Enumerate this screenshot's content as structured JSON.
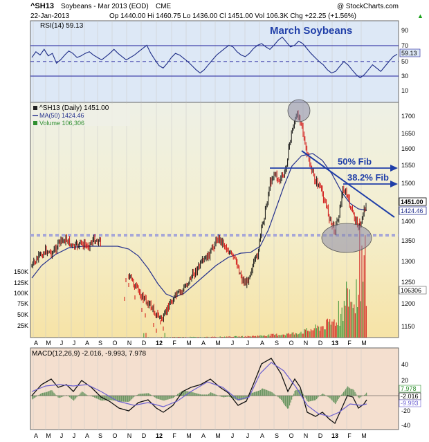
{
  "header": {
    "symbol": "^SH13",
    "name": "Soybeans - Mar 2013 (EOD)",
    "exchange": "CME",
    "date": "22-Jan-2013",
    "quote": "Op 1440.00  Hi 1460.75  Lo 1436.00  Cl 1451.00  Vol 106.3K  Chg +22.25 (+1.56%)",
    "copyright": "@ StockCharts.com",
    "quote_arrow": "▲"
  },
  "months": [
    "A",
    "M",
    "J",
    "J",
    "A",
    "S",
    "O",
    "N",
    "D",
    "12",
    "F",
    "M",
    "A",
    "M",
    "J",
    "J",
    "A",
    "S",
    "O",
    "N",
    "D",
    "13",
    "F",
    "M"
  ],
  "rsi": {
    "label": "RSI(14) 59.13",
    "ticks": [
      "90",
      "70",
      "50",
      "30",
      "10"
    ],
    "value_tag": "59.13",
    "panel_title": "March Soybeans",
    "values": [
      55,
      62,
      58,
      65,
      57,
      60,
      48,
      52,
      58,
      63,
      60,
      55,
      57,
      60,
      62,
      58,
      55,
      52,
      56,
      60,
      65,
      60,
      56,
      52,
      55,
      58,
      62,
      66,
      70,
      60,
      52,
      45,
      42,
      48,
      55,
      60,
      58,
      54,
      50,
      45,
      40,
      36,
      40,
      46,
      52,
      58,
      62,
      66,
      70,
      68,
      62,
      58,
      56,
      60,
      66,
      70,
      72,
      68,
      65,
      70,
      76,
      80,
      74,
      68,
      70,
      75,
      72,
      66,
      60,
      55,
      50,
      46,
      40,
      36,
      38,
      44,
      50,
      46,
      40,
      34,
      30,
      34,
      40,
      46,
      42,
      38,
      44,
      50,
      56,
      59
    ]
  },
  "price_panel": {
    "legend_price": "^SH13 (Daily) 1451.00",
    "legend_ma": "MA(50) 1424.46",
    "legend_volume": "Volume 106,306",
    "price_ticks": [
      "1700",
      "1650",
      "1600",
      "1550",
      "1500",
      "1450",
      "1400",
      "1350",
      "1300",
      "1250",
      "1200",
      "1150"
    ],
    "volume_ticks": [
      "150K",
      "125K",
      "100K",
      "75K",
      "50K",
      "25K"
    ],
    "tag_close": "1451.00",
    "tag_ma": "1424.46",
    "tag_volume": "106306",
    "annotations": {
      "fib50": "50% Fib",
      "fib382": "38.2% Fib"
    }
  },
  "macd": {
    "label": "MACD(12,26,9) -2.016, -9.993, 7.978",
    "ticks": [
      "40",
      "20",
      "0",
      "-20",
      "-40"
    ],
    "tags": [
      "7.978",
      "-2.016",
      "-9.993"
    ]
  },
  "chart_data": {
    "type": "line",
    "title": "March Soybeans",
    "x": [
      "Apr-11",
      "May-11",
      "Jun-11",
      "Jul-11",
      "Aug-11",
      "Sep-11",
      "Oct-11",
      "Nov-11",
      "Dec-11",
      "Jan-12",
      "Feb-12",
      "Mar-12",
      "Apr-12",
      "May-12",
      "Jun-12",
      "Jul-12",
      "Aug-12",
      "Sep-12",
      "Oct-12",
      "Nov-12",
      "Dec-12",
      "Jan-13"
    ],
    "series": [
      {
        "name": "^SH13 (Daily)",
        "values": [
          1330,
          1345,
          1355,
          1345,
          1330,
          1285,
          1215,
          1175,
          1160,
          1200,
          1250,
          1290,
          1360,
          1340,
          1280,
          1530,
          1565,
          1640,
          1510,
          1450,
          1480,
          1451
        ]
      },
      {
        "name": "MA(50)",
        "values": [
          1300,
          1320,
          1335,
          1340,
          1335,
          1320,
          1280,
          1235,
          1195,
          1190,
          1215,
          1255,
          1300,
          1335,
          1325,
          1380,
          1480,
          1565,
          1580,
          1510,
          1470,
          1424.46
        ]
      }
    ],
    "ylim": [
      1130,
      1760
    ],
    "levels": {
      "support": 1360,
      "fib50": 1543,
      "fib382": 1496
    },
    "rsi_ylim": [
      0,
      100
    ],
    "macd_ylim": [
      -50,
      50
    ],
    "volume_peak": 150000
  }
}
